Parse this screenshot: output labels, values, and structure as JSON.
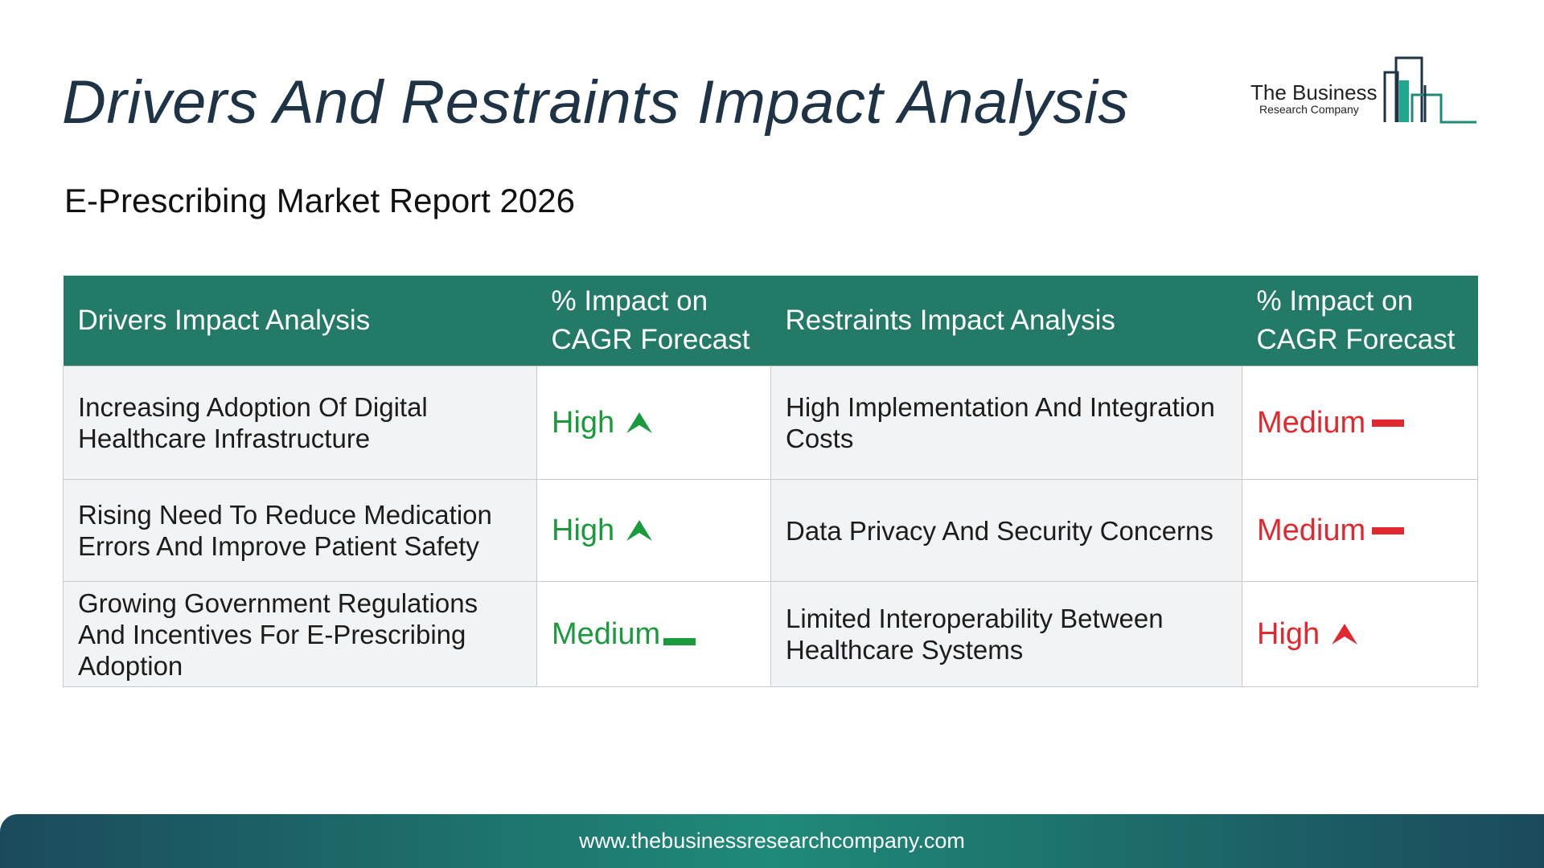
{
  "header": {
    "title": "Drivers And Restraints Impact Analysis",
    "subtitle": "E-Prescribing Market Report 2026"
  },
  "logo": {
    "line1": "The Business",
    "line2": "Research Company"
  },
  "table": {
    "headers": {
      "drivers": "Drivers Impact Analysis",
      "drivers_impact": "% Impact on CAGR Forecast",
      "restraints": "Restraints Impact Analysis",
      "restraints_impact": "% Impact on CAGR Forecast"
    },
    "rows": [
      {
        "driver": "Increasing Adoption Of Digital Healthcare Infrastructure",
        "driver_impact": "High",
        "driver_trend_icon": "arrow-up-icon",
        "restraint": "High Implementation And Integration Costs",
        "restraint_impact": "Medium",
        "restraint_trend_icon": "dash-icon"
      },
      {
        "driver": "Rising Need To Reduce Medication Errors And Improve Patient Safety",
        "driver_impact": "High",
        "driver_trend_icon": "arrow-up-icon",
        "restraint": "Data Privacy And Security Concerns",
        "restraint_impact": "Medium",
        "restraint_trend_icon": "dash-icon"
      },
      {
        "driver": "Growing Government Regulations And Incentives For E-Prescribing Adoption",
        "driver_impact": "Medium",
        "driver_trend_icon": "dash-icon",
        "restraint": "Limited Interoperability Between Healthcare Systems",
        "restraint_impact": "High",
        "restraint_trend_icon": "arrow-up-icon"
      }
    ]
  },
  "colors": {
    "header_bg": "#237a67",
    "driver_impact": "#1a9a3c",
    "restraint_impact": "#e0282e",
    "title": "#1f3346"
  },
  "footer": {
    "url": "www.thebusinessresearchcompany.com"
  }
}
